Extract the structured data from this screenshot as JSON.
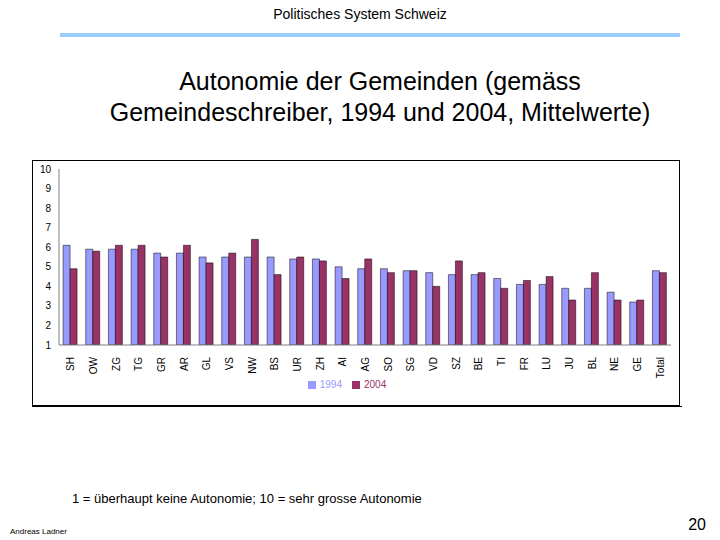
{
  "header": "Politisches System Schweiz",
  "footer_note": "1 = überhaupt keine Autonomie; 10 = sehr grosse Autonomie",
  "author": "Andreas Ladner",
  "page": 20,
  "chart_data": {
    "type": "bar",
    "title": "Autonomie der Gemeinden  (gemäss Gemeindeschreiber, 1994 und 2004, Mittelwerte)",
    "categories": [
      "SH",
      "OW",
      "ZG",
      "TG",
      "GR",
      "AR",
      "GL",
      "VS",
      "NW",
      "BS",
      "UR",
      "ZH",
      "AI",
      "AG",
      "SO",
      "SG",
      "VD",
      "SZ",
      "BE",
      "TI",
      "FR",
      "LU",
      "JU",
      "BL",
      "NE",
      "GE",
      "Total"
    ],
    "series": [
      {
        "name": "1994",
        "color": "#9999ff",
        "values": [
          6.1,
          5.9,
          5.9,
          5.9,
          5.7,
          5.7,
          5.5,
          5.5,
          5.5,
          5.5,
          5.4,
          5.4,
          5.0,
          4.9,
          4.9,
          4.8,
          4.7,
          4.6,
          4.6,
          4.4,
          4.1,
          4.1,
          3.9,
          3.9,
          3.7,
          3.2,
          4.8
        ]
      },
      {
        "name": "2004",
        "color": "#993366",
        "values": [
          4.9,
          5.8,
          6.1,
          6.1,
          5.5,
          6.1,
          5.2,
          5.7,
          6.4,
          4.6,
          5.5,
          5.3,
          4.4,
          5.4,
          4.7,
          4.8,
          4.0,
          5.3,
          4.7,
          3.9,
          4.3,
          4.5,
          3.3,
          4.7,
          3.3,
          3.3,
          4.7
        ]
      }
    ],
    "ylim": [
      1,
      10
    ],
    "yticks": [
      1,
      2,
      3,
      4,
      5,
      6,
      7,
      8,
      9,
      10
    ],
    "grid": false,
    "legend": "bottom"
  }
}
